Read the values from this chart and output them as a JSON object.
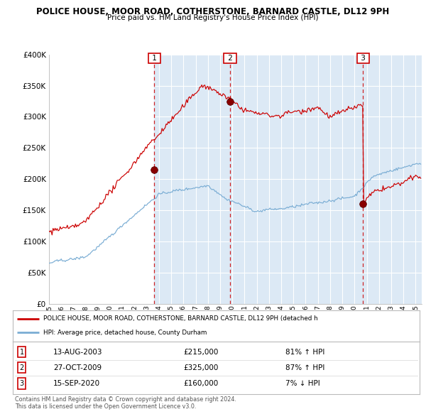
{
  "title1": "POLICE HOUSE, MOOR ROAD, COTHERSTONE, BARNARD CASTLE, DL12 9PH",
  "title2": "Price paid vs. HM Land Registry's House Price Index (HPI)",
  "legend_label_red": "POLICE HOUSE, MOOR ROAD, COTHERSTONE, BARNARD CASTLE, DL12 9PH (detached h",
  "legend_label_blue": "HPI: Average price, detached house, County Durham",
  "transactions": [
    {
      "num": 1,
      "date_label": "13-AUG-2003",
      "year": 2003,
      "month": 8,
      "day": 13,
      "price": 215000,
      "pct": "81%",
      "dir": "↑"
    },
    {
      "num": 2,
      "date_label": "27-OCT-2009",
      "year": 2009,
      "month": 10,
      "day": 27,
      "price": 325000,
      "pct": "87%",
      "dir": "↑"
    },
    {
      "num": 3,
      "date_label": "15-SEP-2020",
      "year": 2020,
      "month": 9,
      "day": 15,
      "price": 160000,
      "pct": "7%",
      "dir": "↓"
    }
  ],
  "ylim": [
    0,
    400000
  ],
  "yticks": [
    0,
    50000,
    100000,
    150000,
    200000,
    250000,
    300000,
    350000,
    400000
  ],
  "background_color": "#dce9f5",
  "white_bg": "#ffffff",
  "red_color": "#cc0000",
  "blue_color": "#7aadd4",
  "footer": "Contains HM Land Registry data © Crown copyright and database right 2024.\nThis data is licensed under the Open Government Licence v3.0.",
  "x_start_year": 1995,
  "x_end_year": 2025
}
